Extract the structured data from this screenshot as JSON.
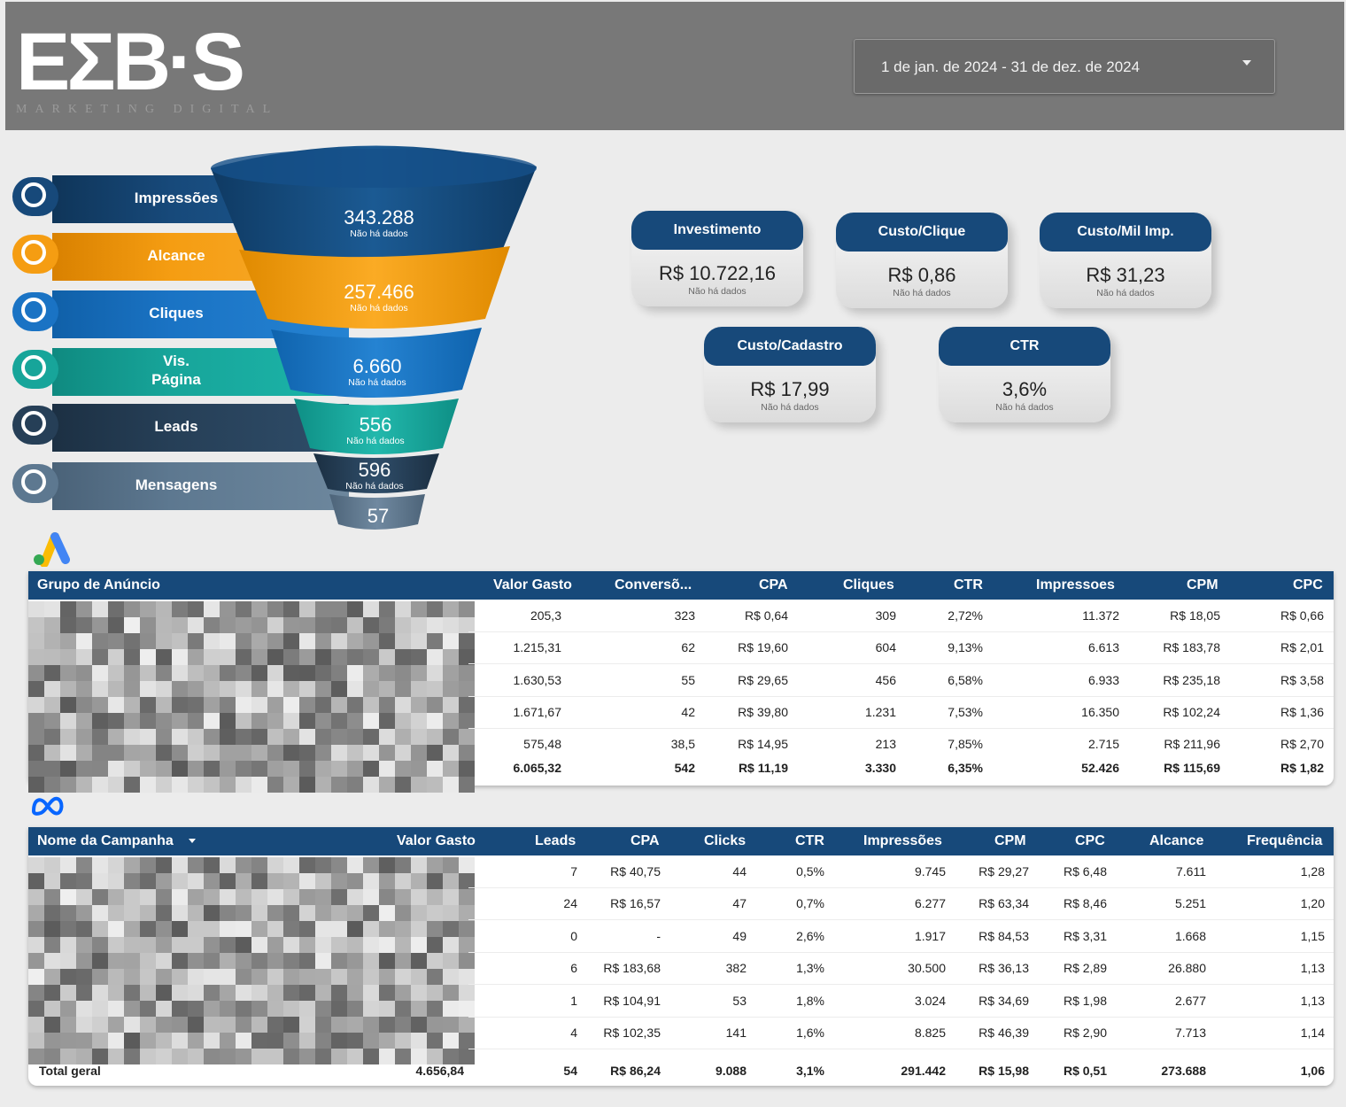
{
  "header": {
    "logo_text": "EƩB·S",
    "logo_sub": "MARKETING DIGITAL",
    "date_range": "1 de jan. de 2024 - 31 de dez. de 2024",
    "date_dropdown_icon": "caret-down-icon"
  },
  "funnel": {
    "stages": [
      {
        "label": "Impressões",
        "value": "343.288",
        "sub": "Não há dados",
        "color": "#17497a"
      },
      {
        "label": "Alcance",
        "value": "257.466",
        "sub": "Não há dados",
        "color": "#f59d12"
      },
      {
        "label": "Cliques",
        "value": "6.660",
        "sub": "Não há dados",
        "color": "#1a73c4"
      },
      {
        "label": "Vis.\nPágina",
        "value": "556",
        "sub": "Não há dados",
        "color": "#17a59a"
      },
      {
        "label": "Leads",
        "value": "596",
        "sub": "Não há dados",
        "color": "#263f57"
      },
      {
        "label": "Mensagens",
        "value": "57",
        "sub": "",
        "color": "#5d7890"
      }
    ]
  },
  "kpis": [
    {
      "title": "Investimento",
      "value": "R$ 10.722,16",
      "sub": "Não há dados"
    },
    {
      "title": "Custo/Clique",
      "value": "R$ 0,86",
      "sub": "Não há dados"
    },
    {
      "title": "Custo/Mil Imp.",
      "value": "R$ 31,23",
      "sub": "Não há dados"
    },
    {
      "title": "Custo/Cadastro",
      "value": "R$ 17,99",
      "sub": "Não há dados"
    },
    {
      "title": "CTR",
      "value": "3,6%",
      "sub": "Não há dados"
    }
  ],
  "google_table": {
    "icon": "google-ads-icon",
    "headers": [
      "Grupo de Anúncio",
      "Valor Gasto",
      "Conversõ...",
      "CPA",
      "Cliques",
      "CTR",
      "Impressoes",
      "CPM",
      "CPC"
    ],
    "rows": [
      [
        "205,3",
        "323",
        "R$ 0,64",
        "309",
        "2,72%",
        "11.372",
        "R$ 18,05",
        "R$ 0,66"
      ],
      [
        "1.215,31",
        "62",
        "R$ 19,60",
        "604",
        "9,13%",
        "6.613",
        "R$ 183,78",
        "R$ 2,01"
      ],
      [
        "1.630,53",
        "55",
        "R$ 29,65",
        "456",
        "6,58%",
        "6.933",
        "R$ 235,18",
        "R$ 3,58"
      ],
      [
        "1.671,67",
        "42",
        "R$ 39,80",
        "1.231",
        "7,53%",
        "16.350",
        "R$ 102,24",
        "R$ 1,36"
      ],
      [
        "575,48",
        "38,5",
        "R$ 14,95",
        "213",
        "7,85%",
        "2.715",
        "R$ 211,96",
        "R$ 2,70"
      ]
    ],
    "total": [
      "6.065,32",
      "542",
      "R$ 11,19",
      "3.330",
      "6,35%",
      "52.426",
      "R$ 115,69",
      "R$ 1,82"
    ]
  },
  "meta_table": {
    "icon": "meta-icon",
    "headers": [
      "Nome da Campanha",
      "Valor Gasto",
      "Leads",
      "CPA",
      "Clicks",
      "CTR",
      "Impressões",
      "CPM",
      "CPC",
      "Alcance",
      "Frequência"
    ],
    "sort_icon": "sort-desc-icon",
    "rows": [
      [
        "7",
        "R$ 40,75",
        "44",
        "0,5%",
        "9.745",
        "R$ 29,27",
        "R$ 6,48",
        "7.611",
        "1,28"
      ],
      [
        "24",
        "R$ 16,57",
        "47",
        "0,7%",
        "6.277",
        "R$ 63,34",
        "R$ 8,46",
        "5.251",
        "1,20"
      ],
      [
        "0",
        "-",
        "49",
        "2,6%",
        "1.917",
        "R$ 84,53",
        "R$ 3,31",
        "1.668",
        "1,15"
      ],
      [
        "6",
        "R$ 183,68",
        "382",
        "1,3%",
        "30.500",
        "R$ 36,13",
        "R$ 2,89",
        "26.880",
        "1,13"
      ],
      [
        "1",
        "R$ 104,91",
        "53",
        "1,8%",
        "3.024",
        "R$ 34,69",
        "R$ 1,98",
        "2.677",
        "1,13"
      ],
      [
        "4",
        "R$ 102,35",
        "141",
        "1,6%",
        "8.825",
        "R$ 46,39",
        "R$ 2,90",
        "7.713",
        "1,14"
      ]
    ],
    "total_label": "Total geral",
    "total": [
      "4.656,84",
      "54",
      "R$ 86,24",
      "9.088",
      "3,1%",
      "291.442",
      "R$ 15,98",
      "R$ 0,51",
      "273.688",
      "1,06"
    ]
  }
}
